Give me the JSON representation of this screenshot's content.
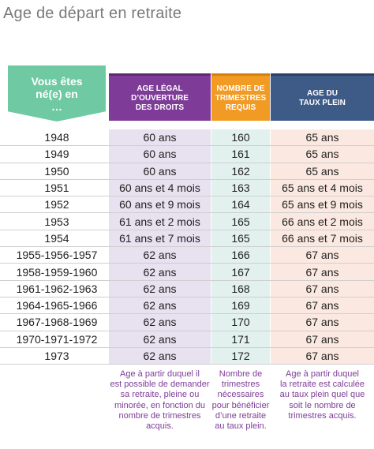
{
  "title": "Age de départ en retraite",
  "headers": {
    "birth": [
      "Vous êtes",
      "né(e) en",
      "…"
    ],
    "age_legal": [
      "AGE LÉGAL",
      "D’OUVERTURE",
      "DES DROITS"
    ],
    "trimestres": [
      "NOMBRE DE",
      "TRIMESTRES",
      "REQUIS"
    ],
    "taux_plein": [
      "AGE DU",
      "TAUX PLEIN"
    ]
  },
  "rows": [
    {
      "birth": "1948",
      "age": "60 ans",
      "tri": "160",
      "taux": "65 ans"
    },
    {
      "birth": "1949",
      "age": "60 ans",
      "tri": "161",
      "taux": "65 ans"
    },
    {
      "birth": "1950",
      "age": "60 ans",
      "tri": "162",
      "taux": "65 ans"
    },
    {
      "birth": "1951",
      "age": "60 ans et 4 mois",
      "tri": "163",
      "taux": "65 ans et 4 mois"
    },
    {
      "birth": "1952",
      "age": "60 ans et 9 mois",
      "tri": "164",
      "taux": "65 ans et 9 mois"
    },
    {
      "birth": "1953",
      "age": "61 ans et 2 mois",
      "tri": "165",
      "taux": "66 ans et 2 mois"
    },
    {
      "birth": "1954",
      "age": "61 ans et 7 mois",
      "tri": "165",
      "taux": "66 ans et 7 mois"
    },
    {
      "birth": "1955-1956-1957",
      "age": "62 ans",
      "tri": "166",
      "taux": "67 ans"
    },
    {
      "birth": "1958-1959-1960",
      "age": "62 ans",
      "tri": "167",
      "taux": "67 ans"
    },
    {
      "birth": "1961-1962-1963",
      "age": "62 ans",
      "tri": "168",
      "taux": "67 ans"
    },
    {
      "birth": "1964-1965-1966",
      "age": "62 ans",
      "tri": "169",
      "taux": "67 ans"
    },
    {
      "birth": "1967-1968-1969",
      "age": "62 ans",
      "tri": "170",
      "taux": "67 ans"
    },
    {
      "birth": "1970-1971-1972",
      "age": "62 ans",
      "tri": "171",
      "taux": "67 ans"
    },
    {
      "birth": "1973",
      "age": "62 ans",
      "tri": "172",
      "taux": "67 ans"
    }
  ],
  "notes": {
    "age_legal": [
      "Age à partir duquel il",
      "est possible de demander",
      "sa retraite, pleine ou",
      "minorée, en fonction du",
      "nombre de trimestres",
      "acquis."
    ],
    "trimestres": [
      "Nombre de",
      "trimestres",
      "nécessaires",
      "pour bénéficier",
      "d’une retraite",
      "au taux plein."
    ],
    "taux_plein": [
      "Age à partir duquel",
      "la retraite est calculée",
      "au taux plein quel que",
      "soit le nombre de",
      "trimestres acquis."
    ]
  },
  "colors": {
    "birth_header": "#6fcaa3",
    "age_header": "#7e3c98",
    "trimestres_header": "#f19a24",
    "taux_header": "#3d5b86"
  }
}
